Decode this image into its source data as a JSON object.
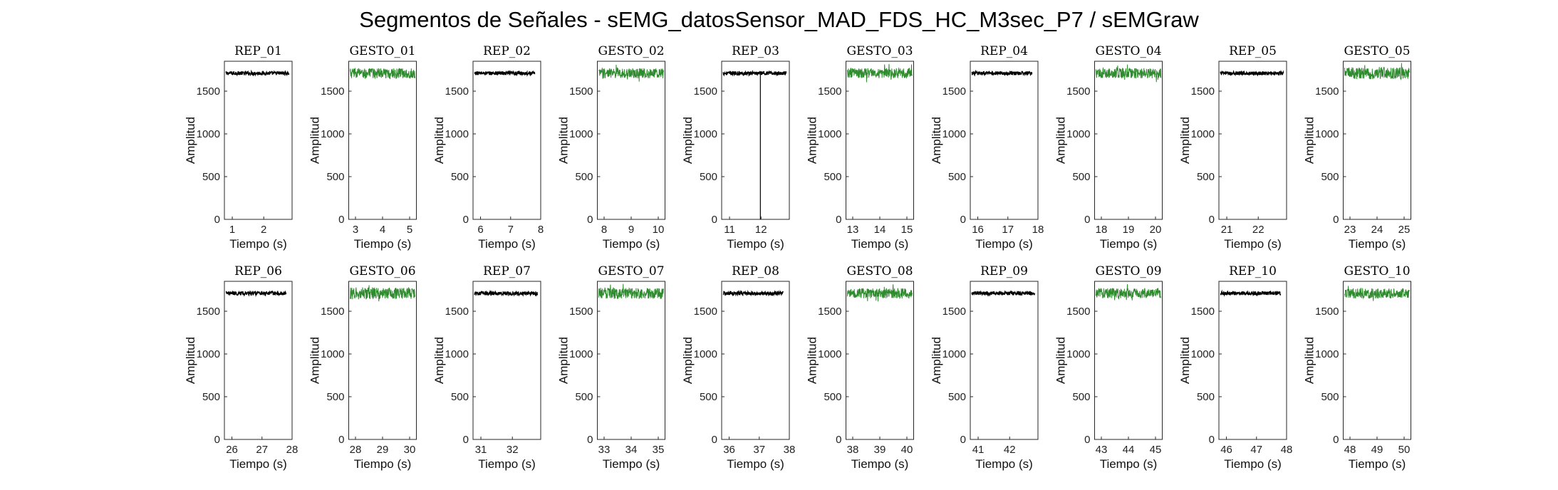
{
  "figure": {
    "title": "Segmentos de Señales - sEMG_datosSensor_MAD_FDS_HC_M3sec_P7 / sEMGraw"
  },
  "colors": {
    "rep": "#000000",
    "gesto": "#2e8b2e",
    "axes": "#262626"
  },
  "chart_data": [
    {
      "type": "line",
      "title": "REP_01",
      "xlabel": "Tiempo (s)",
      "ylabel": "Amplitud",
      "xlim": [
        0.75,
        2.9
      ],
      "xticks": [
        1,
        2
      ],
      "ylim": [
        0,
        1850
      ],
      "yticks": [
        0,
        500,
        1000,
        1500
      ],
      "series": [
        {
          "kind": "rep",
          "x_range": [
            0.8,
            2.8
          ],
          "level": 1710,
          "noise": 22
        }
      ]
    },
    {
      "type": "line",
      "title": "GESTO_01",
      "xlabel": "Tiempo (s)",
      "ylabel": "Amplitud",
      "xlim": [
        2.75,
        5.25
      ],
      "xticks": [
        3,
        4,
        5
      ],
      "ylim": [
        0,
        1850
      ],
      "yticks": [
        0,
        500,
        1000,
        1500
      ],
      "series": [
        {
          "kind": "gesto",
          "x_range": [
            2.8,
            5.2
          ],
          "level": 1710,
          "noise": 60
        }
      ]
    },
    {
      "type": "line",
      "title": "REP_02",
      "xlabel": "Tiempo (s)",
      "ylabel": "Amplitud",
      "xlim": [
        5.75,
        8.0
      ],
      "xticks": [
        6,
        7,
        8
      ],
      "ylim": [
        0,
        1850
      ],
      "yticks": [
        0,
        500,
        1000,
        1500
      ],
      "series": [
        {
          "kind": "rep",
          "x_range": [
            5.8,
            7.8
          ],
          "level": 1710,
          "noise": 22
        }
      ]
    },
    {
      "type": "line",
      "title": "GESTO_02",
      "xlabel": "Tiempo (s)",
      "ylabel": "Amplitud",
      "xlim": [
        7.75,
        10.25
      ],
      "xticks": [
        8,
        9,
        10
      ],
      "ylim": [
        0,
        1850
      ],
      "yticks": [
        0,
        500,
        1000,
        1500
      ],
      "series": [
        {
          "kind": "gesto",
          "x_range": [
            7.8,
            10.2
          ],
          "level": 1710,
          "noise": 60
        }
      ]
    },
    {
      "type": "line",
      "title": "REP_03",
      "xlabel": "Tiempo (s)",
      "ylabel": "Amplitud",
      "xlim": [
        10.75,
        12.9
      ],
      "xticks": [
        11,
        12
      ],
      "ylim": [
        0,
        1850
      ],
      "yticks": [
        0,
        500,
        1000,
        1500
      ],
      "series": [
        {
          "kind": "rep",
          "x_range": [
            10.8,
            12.8
          ],
          "level": 1710,
          "noise": 22,
          "spike_x": 11.98
        }
      ]
    },
    {
      "type": "line",
      "title": "GESTO_03",
      "xlabel": "Tiempo (s)",
      "ylabel": "Amplitud",
      "xlim": [
        12.75,
        15.25
      ],
      "xticks": [
        13,
        14,
        15
      ],
      "ylim": [
        0,
        1850
      ],
      "yticks": [
        0,
        500,
        1000,
        1500
      ],
      "series": [
        {
          "kind": "gesto",
          "x_range": [
            12.8,
            15.2
          ],
          "level": 1710,
          "noise": 60
        }
      ]
    },
    {
      "type": "line",
      "title": "REP_04",
      "xlabel": "Tiempo (s)",
      "ylabel": "Amplitud",
      "xlim": [
        15.75,
        18.0
      ],
      "xticks": [
        16,
        17,
        18
      ],
      "ylim": [
        0,
        1850
      ],
      "yticks": [
        0,
        500,
        1000,
        1500
      ],
      "series": [
        {
          "kind": "rep",
          "x_range": [
            15.8,
            17.8
          ],
          "level": 1710,
          "noise": 22
        }
      ]
    },
    {
      "type": "line",
      "title": "GESTO_04",
      "xlabel": "Tiempo (s)",
      "ylabel": "Amplitud",
      "xlim": [
        17.75,
        20.25
      ],
      "xticks": [
        18,
        19,
        20
      ],
      "ylim": [
        0,
        1850
      ],
      "yticks": [
        0,
        500,
        1000,
        1500
      ],
      "series": [
        {
          "kind": "gesto",
          "x_range": [
            17.8,
            20.2
          ],
          "level": 1710,
          "noise": 60
        }
      ]
    },
    {
      "type": "line",
      "title": "REP_05",
      "xlabel": "Tiempo (s)",
      "ylabel": "Amplitud",
      "xlim": [
        20.75,
        22.9
      ],
      "xticks": [
        21,
        22
      ],
      "ylim": [
        0,
        1850
      ],
      "yticks": [
        0,
        500,
        1000,
        1500
      ],
      "series": [
        {
          "kind": "rep",
          "x_range": [
            20.8,
            22.8
          ],
          "level": 1710,
          "noise": 22
        }
      ]
    },
    {
      "type": "line",
      "title": "GESTO_05",
      "xlabel": "Tiempo (s)",
      "ylabel": "Amplitud",
      "xlim": [
        22.75,
        25.25
      ],
      "xticks": [
        23,
        24,
        25
      ],
      "ylim": [
        0,
        1850
      ],
      "yticks": [
        0,
        500,
        1000,
        1500
      ],
      "series": [
        {
          "kind": "gesto",
          "x_range": [
            22.8,
            25.2
          ],
          "level": 1710,
          "noise": 70
        }
      ]
    },
    {
      "type": "line",
      "title": "REP_06",
      "xlabel": "Tiempo (s)",
      "ylabel": "Amplitud",
      "xlim": [
        25.75,
        28.0
      ],
      "xticks": [
        26,
        27,
        28
      ],
      "ylim": [
        0,
        1850
      ],
      "yticks": [
        0,
        500,
        1000,
        1500
      ],
      "series": [
        {
          "kind": "rep",
          "x_range": [
            25.8,
            27.8
          ],
          "level": 1710,
          "noise": 22
        }
      ]
    },
    {
      "type": "line",
      "title": "GESTO_06",
      "xlabel": "Tiempo (s)",
      "ylabel": "Amplitud",
      "xlim": [
        27.75,
        30.25
      ],
      "xticks": [
        28,
        29,
        30
      ],
      "ylim": [
        0,
        1850
      ],
      "yticks": [
        0,
        500,
        1000,
        1500
      ],
      "series": [
        {
          "kind": "gesto",
          "x_range": [
            27.8,
            30.2
          ],
          "level": 1710,
          "noise": 70
        }
      ]
    },
    {
      "type": "line",
      "title": "REP_07",
      "xlabel": "Tiempo (s)",
      "ylabel": "Amplitud",
      "xlim": [
        30.75,
        32.9
      ],
      "xticks": [
        31,
        32
      ],
      "ylim": [
        0,
        1850
      ],
      "yticks": [
        0,
        500,
        1000,
        1500
      ],
      "series": [
        {
          "kind": "rep",
          "x_range": [
            30.8,
            32.8
          ],
          "level": 1710,
          "noise": 22
        }
      ]
    },
    {
      "type": "line",
      "title": "GESTO_07",
      "xlabel": "Tiempo (s)",
      "ylabel": "Amplitud",
      "xlim": [
        32.75,
        35.25
      ],
      "xticks": [
        33,
        34,
        35
      ],
      "ylim": [
        0,
        1850
      ],
      "yticks": [
        0,
        500,
        1000,
        1500
      ],
      "series": [
        {
          "kind": "gesto",
          "x_range": [
            32.8,
            35.2
          ],
          "level": 1710,
          "noise": 65
        }
      ]
    },
    {
      "type": "line",
      "title": "REP_08",
      "xlabel": "Tiempo (s)",
      "ylabel": "Amplitud",
      "xlim": [
        35.75,
        38.0
      ],
      "xticks": [
        36,
        37,
        38
      ],
      "ylim": [
        0,
        1850
      ],
      "yticks": [
        0,
        500,
        1000,
        1500
      ],
      "series": [
        {
          "kind": "rep",
          "x_range": [
            35.8,
            37.8
          ],
          "level": 1710,
          "noise": 22
        }
      ]
    },
    {
      "type": "line",
      "title": "GESTO_08",
      "xlabel": "Tiempo (s)",
      "ylabel": "Amplitud",
      "xlim": [
        37.75,
        40.25
      ],
      "xticks": [
        38,
        39,
        40
      ],
      "ylim": [
        0,
        1850
      ],
      "yticks": [
        0,
        500,
        1000,
        1500
      ],
      "series": [
        {
          "kind": "gesto",
          "x_range": [
            37.8,
            40.2
          ],
          "level": 1710,
          "noise": 60
        }
      ]
    },
    {
      "type": "line",
      "title": "REP_09",
      "xlabel": "Tiempo (s)",
      "ylabel": "Amplitud",
      "xlim": [
        40.75,
        42.9
      ],
      "xticks": [
        41,
        42
      ],
      "ylim": [
        0,
        1850
      ],
      "yticks": [
        0,
        500,
        1000,
        1500
      ],
      "series": [
        {
          "kind": "rep",
          "x_range": [
            40.8,
            42.8
          ],
          "level": 1710,
          "noise": 22
        }
      ]
    },
    {
      "type": "line",
      "title": "GESTO_09",
      "xlabel": "Tiempo (s)",
      "ylabel": "Amplitud",
      "xlim": [
        42.75,
        45.25
      ],
      "xticks": [
        43,
        44,
        45
      ],
      "ylim": [
        0,
        1850
      ],
      "yticks": [
        0,
        500,
        1000,
        1500
      ],
      "series": [
        {
          "kind": "gesto",
          "x_range": [
            42.8,
            45.2
          ],
          "level": 1710,
          "noise": 60
        }
      ]
    },
    {
      "type": "line",
      "title": "REP_10",
      "xlabel": "Tiempo (s)",
      "ylabel": "Amplitud",
      "xlim": [
        45.75,
        48.0
      ],
      "xticks": [
        46,
        47,
        48
      ],
      "ylim": [
        0,
        1850
      ],
      "yticks": [
        0,
        500,
        1000,
        1500
      ],
      "series": [
        {
          "kind": "rep",
          "x_range": [
            45.8,
            47.8
          ],
          "level": 1710,
          "noise": 22
        }
      ]
    },
    {
      "type": "line",
      "title": "GESTO_10",
      "xlabel": "Tiempo (s)",
      "ylabel": "Amplitud",
      "xlim": [
        47.75,
        50.25
      ],
      "xticks": [
        48,
        49,
        50
      ],
      "ylim": [
        0,
        1850
      ],
      "yticks": [
        0,
        500,
        1000,
        1500
      ],
      "series": [
        {
          "kind": "gesto",
          "x_range": [
            47.8,
            50.2
          ],
          "level": 1710,
          "noise": 60
        }
      ]
    }
  ]
}
